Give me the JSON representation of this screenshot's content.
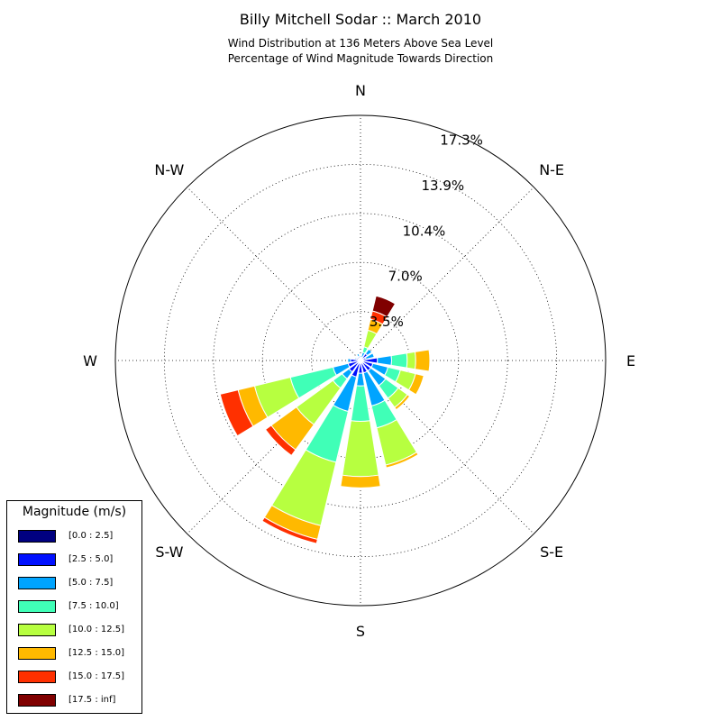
{
  "title": "Billy Mitchell Sodar :: March 2010",
  "subtitle_line1": "Wind Distribution at 136 Meters Above Sea Level",
  "subtitle_line2": "Percentage of Wind Magnitude Towards Direction",
  "chart_data": {
    "type": "windrose",
    "title": "Billy Mitchell Sodar :: March 2010",
    "direction_labels": [
      "N",
      "N-E",
      "E",
      "S-E",
      "S",
      "S-W",
      "W",
      "N-W"
    ],
    "radial_ticks": [
      "3.5%",
      "7.0%",
      "10.4%",
      "13.9%",
      "17.3%"
    ],
    "radial_tick_values": [
      3.46,
      6.93,
      10.39,
      13.86,
      17.32
    ],
    "radial_max": 17.32,
    "grid": true,
    "sector_width_deg": 22.5,
    "directions_deg": [
      0,
      22.5,
      45,
      67.5,
      90,
      112.5,
      135,
      157.5,
      180,
      202.5,
      225,
      247.5,
      270,
      292.5,
      315,
      337.5
    ],
    "legend_title": "Magnitude (m/s)",
    "legend_placement": "lower-left",
    "bins": [
      {
        "label": "[0.0 : 2.5]",
        "color": "#000080"
      },
      {
        "label": "[2.5 : 5.0]",
        "color": "#0010ff"
      },
      {
        "label": "[5.0 : 7.5]",
        "color": "#00a4ff"
      },
      {
        "label": "[7.5 : 10.0]",
        "color": "#40ffb7"
      },
      {
        "label": "[10.0 : 12.5]",
        "color": "#b7ff40"
      },
      {
        "label": "[12.5 : 15.0]",
        "color": "#ffb900"
      },
      {
        "label": "[15.0 : 17.5]",
        "color": "#ff3000"
      },
      {
        "label": "[17.5 : inf]",
        "color": "#800000"
      }
    ],
    "cumulative_percent": [
      [
        0.05,
        0.2,
        0.35,
        0.4,
        0.45,
        0.45,
        0.45,
        0.45
      ],
      [
        0.05,
        0.25,
        0.6,
        1.0,
        2.2,
        3.0,
        3.6,
        4.7
      ],
      [
        0.05,
        0.6,
        1.0,
        1.0,
        1.0,
        1.0,
        1.0,
        1.0
      ],
      [
        0.05,
        0.4,
        1.0,
        1.0,
        1.0,
        1.0,
        1.0,
        1.0
      ],
      [
        0.1,
        1.2,
        2.2,
        3.3,
        3.9,
        4.9,
        4.9,
        4.9
      ],
      [
        0.1,
        0.9,
        2.0,
        2.9,
        4.0,
        4.6,
        4.6,
        4.6
      ],
      [
        0.1,
        0.9,
        2.2,
        3.3,
        4.1,
        4.3,
        4.3,
        4.3
      ],
      [
        0.1,
        0.9,
        3.3,
        4.9,
        7.6,
        7.8,
        7.8,
        7.8
      ],
      [
        0.1,
        0.9,
        1.8,
        4.3,
        8.2,
        9.0,
        9.0,
        9.0
      ],
      [
        0.1,
        1.2,
        3.7,
        7.4,
        12.0,
        13.0,
        13.3,
        13.3
      ],
      [
        0.1,
        1.0,
        1.6,
        2.4,
        5.6,
        7.8,
        8.3,
        8.3
      ],
      [
        0.1,
        0.9,
        2.0,
        5.1,
        7.7,
        8.9,
        10.2,
        10.2
      ],
      [
        0.1,
        0.7,
        0.9,
        0.9,
        0.9,
        0.9,
        0.9,
        0.9
      ],
      [
        0.1,
        0.3,
        0.4,
        0.4,
        0.4,
        0.4,
        0.4,
        0.4
      ],
      [
        0.05,
        0.3,
        0.3,
        0.3,
        0.3,
        0.3,
        0.3,
        0.3
      ],
      [
        0.05,
        0.3,
        0.5,
        0.5,
        0.5,
        0.5,
        0.5,
        0.5
      ]
    ]
  }
}
